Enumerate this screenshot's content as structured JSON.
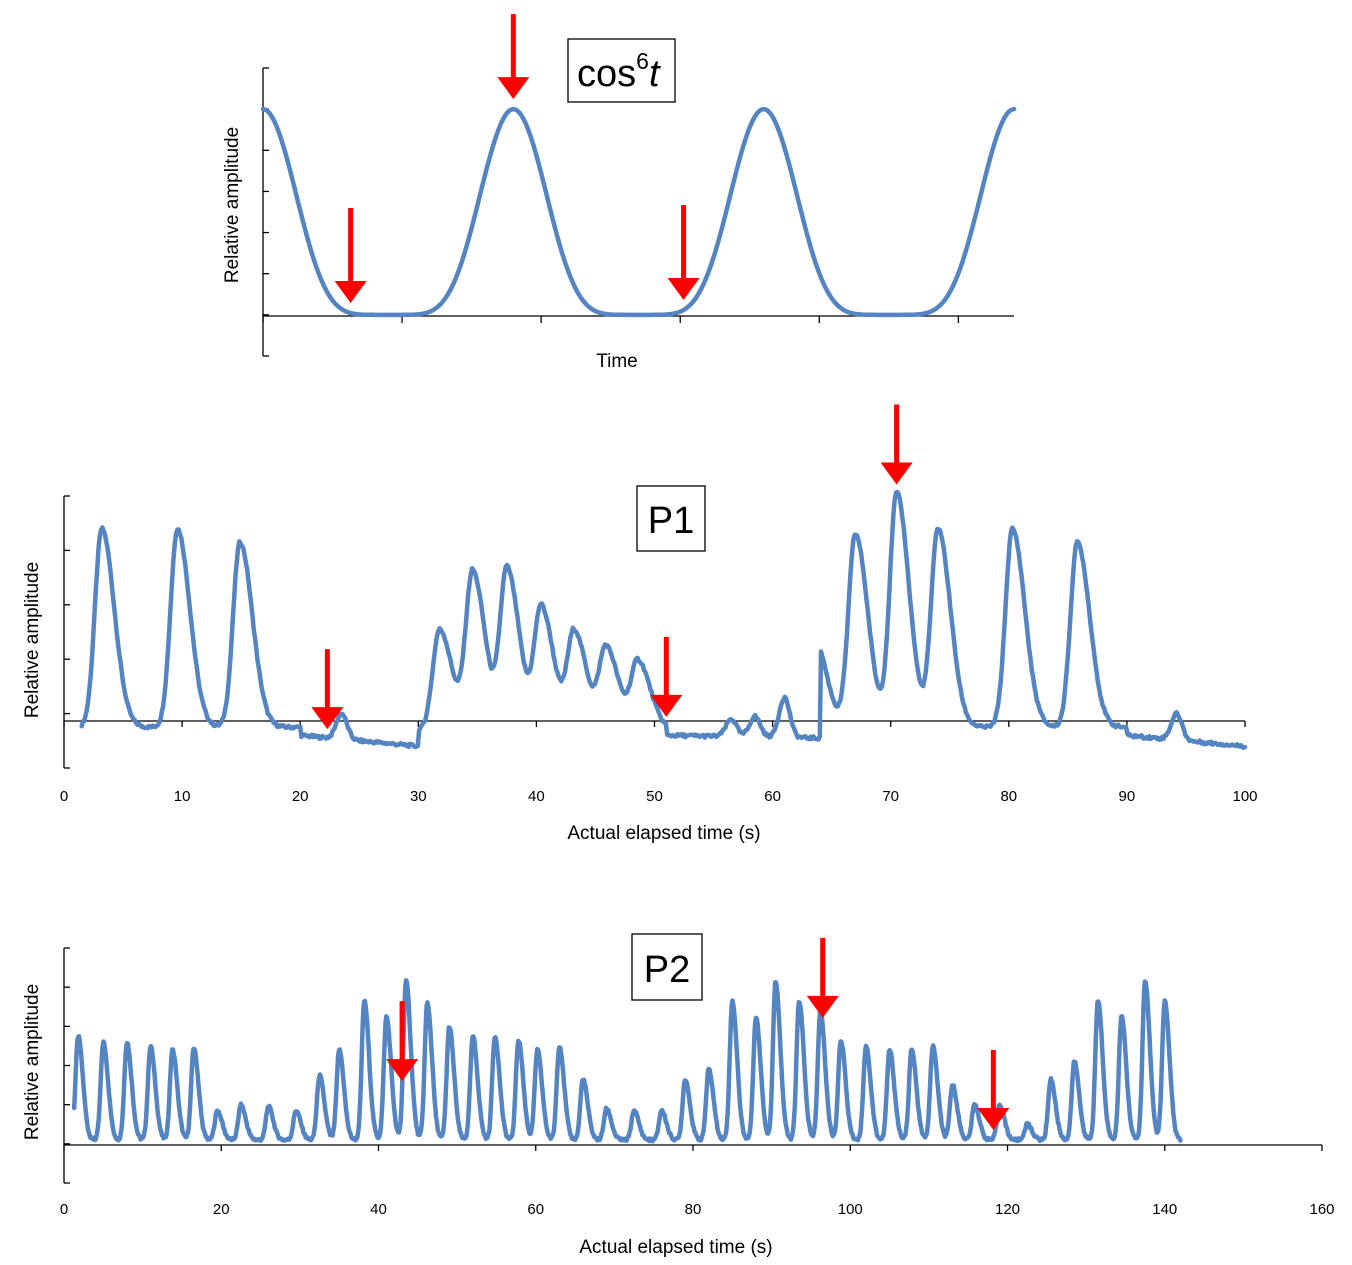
{
  "colors": {
    "trace": "#5584c2",
    "arrow": "#ff0000",
    "axis": "#000000"
  },
  "chart_data": [
    {
      "type": "line",
      "title": "cos⁶t",
      "title_base": "cos",
      "title_exp": "6",
      "title_var": "t",
      "xlabel": "Time",
      "ylabel": "Relative amplitude",
      "function": "cos^6(t)",
      "xlim": [
        0,
        3
      ],
      "ylim": [
        -0.2,
        1.2
      ],
      "x_ticks_labeled": false,
      "y_ticks_labeled": false,
      "arrows": [
        {
          "x": 0.35,
          "direction": "down",
          "target": "trough"
        },
        {
          "x": 1.0,
          "direction": "down",
          "target": "peak"
        },
        {
          "x": 1.68,
          "direction": "down",
          "target": "trough"
        }
      ]
    },
    {
      "type": "line",
      "title": "P1",
      "xlabel": "Actual elapsed time (s)",
      "ylabel": "Relative amplitude",
      "xlim": [
        0,
        100
      ],
      "ylim": [
        -0.2,
        0.8
      ],
      "x_ticks": [
        0,
        10,
        20,
        30,
        40,
        50,
        60,
        70,
        80,
        90,
        100
      ],
      "y_ticks_labeled": false,
      "segments": [
        {
          "x0": 1.5,
          "x1": 20,
          "peaks": [
            [
              3.2,
              0.68
            ],
            [
              9.6,
              0.68
            ],
            [
              14.9,
              0.63
            ]
          ],
          "floor": -0.05
        },
        {
          "x0": 20,
          "x1": 30,
          "drift_from": -0.08,
          "drift_to": -0.12,
          "small_peaks": [
            [
              23.5,
              0.0
            ]
          ]
        },
        {
          "x0": 30,
          "x1": 51,
          "peaks": [
            [
              31.8,
              0.31
            ],
            [
              34.6,
              0.52
            ],
            [
              37.5,
              0.53
            ],
            [
              40.4,
              0.39
            ],
            [
              43.2,
              0.3
            ],
            [
              45.9,
              0.24
            ],
            [
              48.6,
              0.19
            ]
          ],
          "floor": -0.06
        },
        {
          "x0": 51,
          "x1": 64,
          "drift_from": -0.08,
          "drift_to": -0.09,
          "small_peaks": [
            [
              56.5,
              -0.02
            ],
            [
              58.5,
              -0.01
            ],
            [
              61.0,
              0.06
            ]
          ]
        },
        {
          "x0": 62,
          "x1": 90,
          "peaks": [
            [
              63.5,
              0.28
            ],
            [
              67.0,
              0.66
            ],
            [
              70.5,
              0.81
            ],
            [
              74.0,
              0.68
            ],
            [
              80.3,
              0.68
            ],
            [
              85.8,
              0.63
            ]
          ],
          "floor": -0.05
        },
        {
          "x0": 90,
          "x1": 100,
          "drift_from": -0.08,
          "drift_to": -0.12,
          "small_peaks": [
            [
              94.2,
              0.0
            ]
          ]
        }
      ],
      "arrows": [
        {
          "x": 22.3,
          "direction": "down"
        },
        {
          "x": 51.0,
          "direction": "down"
        },
        {
          "x": 70.5,
          "direction": "down"
        }
      ]
    },
    {
      "type": "line",
      "title": "P2",
      "xlabel": "Actual elapsed time (s)",
      "ylabel": "Relative amplitude",
      "xlim": [
        0,
        160
      ],
      "ylim": [
        -0.2,
        1.0
      ],
      "x_ticks": [
        0,
        20,
        40,
        60,
        80,
        100,
        120,
        140,
        160
      ],
      "y_ticks_labeled": false,
      "peaks": [
        [
          1.8,
          0.55
        ],
        [
          5.0,
          0.52
        ],
        [
          8.0,
          0.52
        ],
        [
          11.0,
          0.5
        ],
        [
          13.8,
          0.48
        ],
        [
          16.5,
          0.49
        ],
        [
          19.5,
          0.17
        ],
        [
          22.5,
          0.2
        ],
        [
          26.0,
          0.19
        ],
        [
          29.5,
          0.17
        ],
        [
          32.5,
          0.35
        ],
        [
          35.0,
          0.48
        ],
        [
          38.2,
          0.73
        ],
        [
          41.0,
          0.65
        ],
        [
          43.5,
          0.83
        ],
        [
          46.2,
          0.72
        ],
        [
          49.0,
          0.6
        ],
        [
          52.0,
          0.55
        ],
        [
          54.8,
          0.55
        ],
        [
          57.8,
          0.53
        ],
        [
          60.2,
          0.48
        ],
        [
          63.0,
          0.5
        ],
        [
          66.0,
          0.33
        ],
        [
          69.0,
          0.18
        ],
        [
          72.5,
          0.17
        ],
        [
          76.0,
          0.17
        ],
        [
          79.0,
          0.33
        ],
        [
          82.0,
          0.38
        ],
        [
          85.0,
          0.73
        ],
        [
          88.0,
          0.65
        ],
        [
          90.5,
          0.83
        ],
        [
          93.5,
          0.73
        ],
        [
          96.2,
          0.68
        ],
        [
          98.8,
          0.53
        ],
        [
          102.0,
          0.5
        ],
        [
          105.0,
          0.48
        ],
        [
          107.8,
          0.48
        ],
        [
          110.5,
          0.5
        ],
        [
          113.0,
          0.3
        ],
        [
          115.8,
          0.2
        ],
        [
          119.0,
          0.2
        ],
        [
          122.5,
          0.1
        ],
        [
          125.5,
          0.33
        ],
        [
          128.5,
          0.42
        ],
        [
          131.5,
          0.73
        ],
        [
          134.5,
          0.65
        ],
        [
          137.5,
          0.83
        ],
        [
          140.0,
          0.73
        ]
      ],
      "x_start": 1.3,
      "x_end": 142,
      "arrows": [
        {
          "x": 43.0,
          "direction": "down"
        },
        {
          "x": 96.5,
          "direction": "down"
        },
        {
          "x": 118.2,
          "direction": "down"
        }
      ]
    }
  ]
}
